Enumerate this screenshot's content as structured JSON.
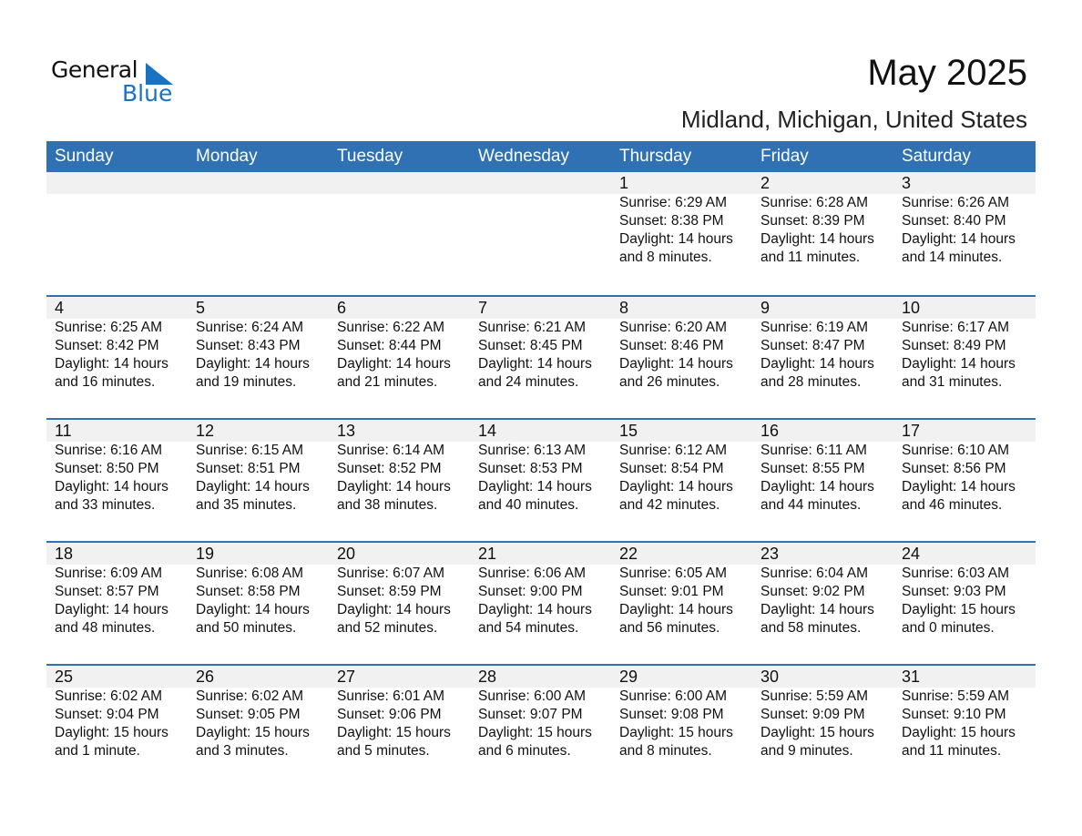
{
  "logo": {
    "text1": "General",
    "text2": "Blue"
  },
  "title": "May 2025",
  "location": "Midland, Michigan, United States",
  "colors": {
    "header": "#2f71b2",
    "band": "#f1f1f1",
    "logo_blue": "#1a73c0"
  },
  "weekdays": [
    "Sunday",
    "Monday",
    "Tuesday",
    "Wednesday",
    "Thursday",
    "Friday",
    "Saturday"
  ],
  "weeks": [
    [
      null,
      null,
      null,
      null,
      {
        "day": "1",
        "sunrise": "Sunrise: 6:29 AM",
        "sunset": "Sunset: 8:38 PM",
        "daylight": "Daylight: 14 hours",
        "minutes": "and 8 minutes."
      },
      {
        "day": "2",
        "sunrise": "Sunrise: 6:28 AM",
        "sunset": "Sunset: 8:39 PM",
        "daylight": "Daylight: 14 hours",
        "minutes": "and 11 minutes."
      },
      {
        "day": "3",
        "sunrise": "Sunrise: 6:26 AM",
        "sunset": "Sunset: 8:40 PM",
        "daylight": "Daylight: 14 hours",
        "minutes": "and 14 minutes."
      }
    ],
    [
      {
        "day": "4",
        "sunrise": "Sunrise: 6:25 AM",
        "sunset": "Sunset: 8:42 PM",
        "daylight": "Daylight: 14 hours",
        "minutes": "and 16 minutes."
      },
      {
        "day": "5",
        "sunrise": "Sunrise: 6:24 AM",
        "sunset": "Sunset: 8:43 PM",
        "daylight": "Daylight: 14 hours",
        "minutes": "and 19 minutes."
      },
      {
        "day": "6",
        "sunrise": "Sunrise: 6:22 AM",
        "sunset": "Sunset: 8:44 PM",
        "daylight": "Daylight: 14 hours",
        "minutes": "and 21 minutes."
      },
      {
        "day": "7",
        "sunrise": "Sunrise: 6:21 AM",
        "sunset": "Sunset: 8:45 PM",
        "daylight": "Daylight: 14 hours",
        "minutes": "and 24 minutes."
      },
      {
        "day": "8",
        "sunrise": "Sunrise: 6:20 AM",
        "sunset": "Sunset: 8:46 PM",
        "daylight": "Daylight: 14 hours",
        "minutes": "and 26 minutes."
      },
      {
        "day": "9",
        "sunrise": "Sunrise: 6:19 AM",
        "sunset": "Sunset: 8:47 PM",
        "daylight": "Daylight: 14 hours",
        "minutes": "and 28 minutes."
      },
      {
        "day": "10",
        "sunrise": "Sunrise: 6:17 AM",
        "sunset": "Sunset: 8:49 PM",
        "daylight": "Daylight: 14 hours",
        "minutes": "and 31 minutes."
      }
    ],
    [
      {
        "day": "11",
        "sunrise": "Sunrise: 6:16 AM",
        "sunset": "Sunset: 8:50 PM",
        "daylight": "Daylight: 14 hours",
        "minutes": "and 33 minutes."
      },
      {
        "day": "12",
        "sunrise": "Sunrise: 6:15 AM",
        "sunset": "Sunset: 8:51 PM",
        "daylight": "Daylight: 14 hours",
        "minutes": "and 35 minutes."
      },
      {
        "day": "13",
        "sunrise": "Sunrise: 6:14 AM",
        "sunset": "Sunset: 8:52 PM",
        "daylight": "Daylight: 14 hours",
        "minutes": "and 38 minutes."
      },
      {
        "day": "14",
        "sunrise": "Sunrise: 6:13 AM",
        "sunset": "Sunset: 8:53 PM",
        "daylight": "Daylight: 14 hours",
        "minutes": "and 40 minutes."
      },
      {
        "day": "15",
        "sunrise": "Sunrise: 6:12 AM",
        "sunset": "Sunset: 8:54 PM",
        "daylight": "Daylight: 14 hours",
        "minutes": "and 42 minutes."
      },
      {
        "day": "16",
        "sunrise": "Sunrise: 6:11 AM",
        "sunset": "Sunset: 8:55 PM",
        "daylight": "Daylight: 14 hours",
        "minutes": "and 44 minutes."
      },
      {
        "day": "17",
        "sunrise": "Sunrise: 6:10 AM",
        "sunset": "Sunset: 8:56 PM",
        "daylight": "Daylight: 14 hours",
        "minutes": "and 46 minutes."
      }
    ],
    [
      {
        "day": "18",
        "sunrise": "Sunrise: 6:09 AM",
        "sunset": "Sunset: 8:57 PM",
        "daylight": "Daylight: 14 hours",
        "minutes": "and 48 minutes."
      },
      {
        "day": "19",
        "sunrise": "Sunrise: 6:08 AM",
        "sunset": "Sunset: 8:58 PM",
        "daylight": "Daylight: 14 hours",
        "minutes": "and 50 minutes."
      },
      {
        "day": "20",
        "sunrise": "Sunrise: 6:07 AM",
        "sunset": "Sunset: 8:59 PM",
        "daylight": "Daylight: 14 hours",
        "minutes": "and 52 minutes."
      },
      {
        "day": "21",
        "sunrise": "Sunrise: 6:06 AM",
        "sunset": "Sunset: 9:00 PM",
        "daylight": "Daylight: 14 hours",
        "minutes": "and 54 minutes."
      },
      {
        "day": "22",
        "sunrise": "Sunrise: 6:05 AM",
        "sunset": "Sunset: 9:01 PM",
        "daylight": "Daylight: 14 hours",
        "minutes": "and 56 minutes."
      },
      {
        "day": "23",
        "sunrise": "Sunrise: 6:04 AM",
        "sunset": "Sunset: 9:02 PM",
        "daylight": "Daylight: 14 hours",
        "minutes": "and 58 minutes."
      },
      {
        "day": "24",
        "sunrise": "Sunrise: 6:03 AM",
        "sunset": "Sunset: 9:03 PM",
        "daylight": "Daylight: 15 hours",
        "minutes": "and 0 minutes."
      }
    ],
    [
      {
        "day": "25",
        "sunrise": "Sunrise: 6:02 AM",
        "sunset": "Sunset: 9:04 PM",
        "daylight": "Daylight: 15 hours",
        "minutes": "and 1 minute."
      },
      {
        "day": "26",
        "sunrise": "Sunrise: 6:02 AM",
        "sunset": "Sunset: 9:05 PM",
        "daylight": "Daylight: 15 hours",
        "minutes": "and 3 minutes."
      },
      {
        "day": "27",
        "sunrise": "Sunrise: 6:01 AM",
        "sunset": "Sunset: 9:06 PM",
        "daylight": "Daylight: 15 hours",
        "minutes": "and 5 minutes."
      },
      {
        "day": "28",
        "sunrise": "Sunrise: 6:00 AM",
        "sunset": "Sunset: 9:07 PM",
        "daylight": "Daylight: 15 hours",
        "minutes": "and 6 minutes."
      },
      {
        "day": "29",
        "sunrise": "Sunrise: 6:00 AM",
        "sunset": "Sunset: 9:08 PM",
        "daylight": "Daylight: 15 hours",
        "minutes": "and 8 minutes."
      },
      {
        "day": "30",
        "sunrise": "Sunrise: 5:59 AM",
        "sunset": "Sunset: 9:09 PM",
        "daylight": "Daylight: 15 hours",
        "minutes": "and 9 minutes."
      },
      {
        "day": "31",
        "sunrise": "Sunrise: 5:59 AM",
        "sunset": "Sunset: 9:10 PM",
        "daylight": "Daylight: 15 hours",
        "minutes": "and 11 minutes."
      }
    ]
  ]
}
